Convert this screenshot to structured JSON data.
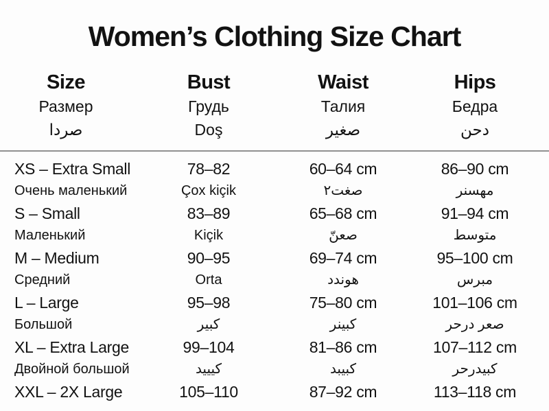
{
  "page": {
    "background": "#fdfdfd",
    "text_color": "#121212",
    "divider_color": "#909090"
  },
  "title": "Women’s Clothing Size Chart",
  "header": {
    "size": {
      "en": "Size",
      "ru": "Размер",
      "other": "صردا"
    },
    "bust": {
      "en": "Bust",
      "ru": "Грудь",
      "other": "Doş"
    },
    "waist": {
      "en": "Waist",
      "ru": "Талия",
      "other": "صغير"
    },
    "hips": {
      "en": "Hips",
      "ru": "Бедра",
      "other": "دحن"
    }
  },
  "rows": [
    {
      "size": "XS – Extra Small",
      "size_sub": "Очень маленький",
      "bust": "78–82",
      "bust_sub": "Çox kiçik",
      "waist": "60–64 cm",
      "waist_sub": "صغت٢",
      "hips": "86–90 cm",
      "hips_sub": "مهسنر"
    },
    {
      "size": "S – Small",
      "size_sub": "Маленький",
      "bust": "83–89",
      "bust_sub": "Kiçik",
      "waist": "65–68 cm",
      "waist_sub": "صعنّ",
      "hips": "91–94 cm",
      "hips_sub": "متوسط"
    },
    {
      "size": "M – Medium",
      "size_sub": "Средний",
      "bust": "90–95",
      "bust_sub": "Orta",
      "waist": "69–74 cm",
      "waist_sub": "هوندد",
      "hips": "95–100 cm",
      "hips_sub": "مبرس"
    },
    {
      "size": "L – Large",
      "size_sub": "Большой",
      "bust": "95–98",
      "bust_sub": "كبير",
      "waist": "75–80 cm",
      "waist_sub": "كبينر",
      "hips": "101–106 cm",
      "hips_sub": "صعر درحر"
    },
    {
      "size": "XL – Extra Large",
      "size_sub": "Двойной большой",
      "bust": "99–104",
      "bust_sub": "كيييد",
      "waist": "81–86 cm",
      "waist_sub": "كبيبد",
      "hips": "107–112 cm",
      "hips_sub": "كبيدرحر"
    },
    {
      "size": "XXL – 2X Large",
      "size_sub": "",
      "bust": "105–110",
      "bust_sub": "",
      "waist": "87–92 cm",
      "waist_sub": "",
      "hips": "113–118 cm",
      "hips_sub": ""
    }
  ]
}
